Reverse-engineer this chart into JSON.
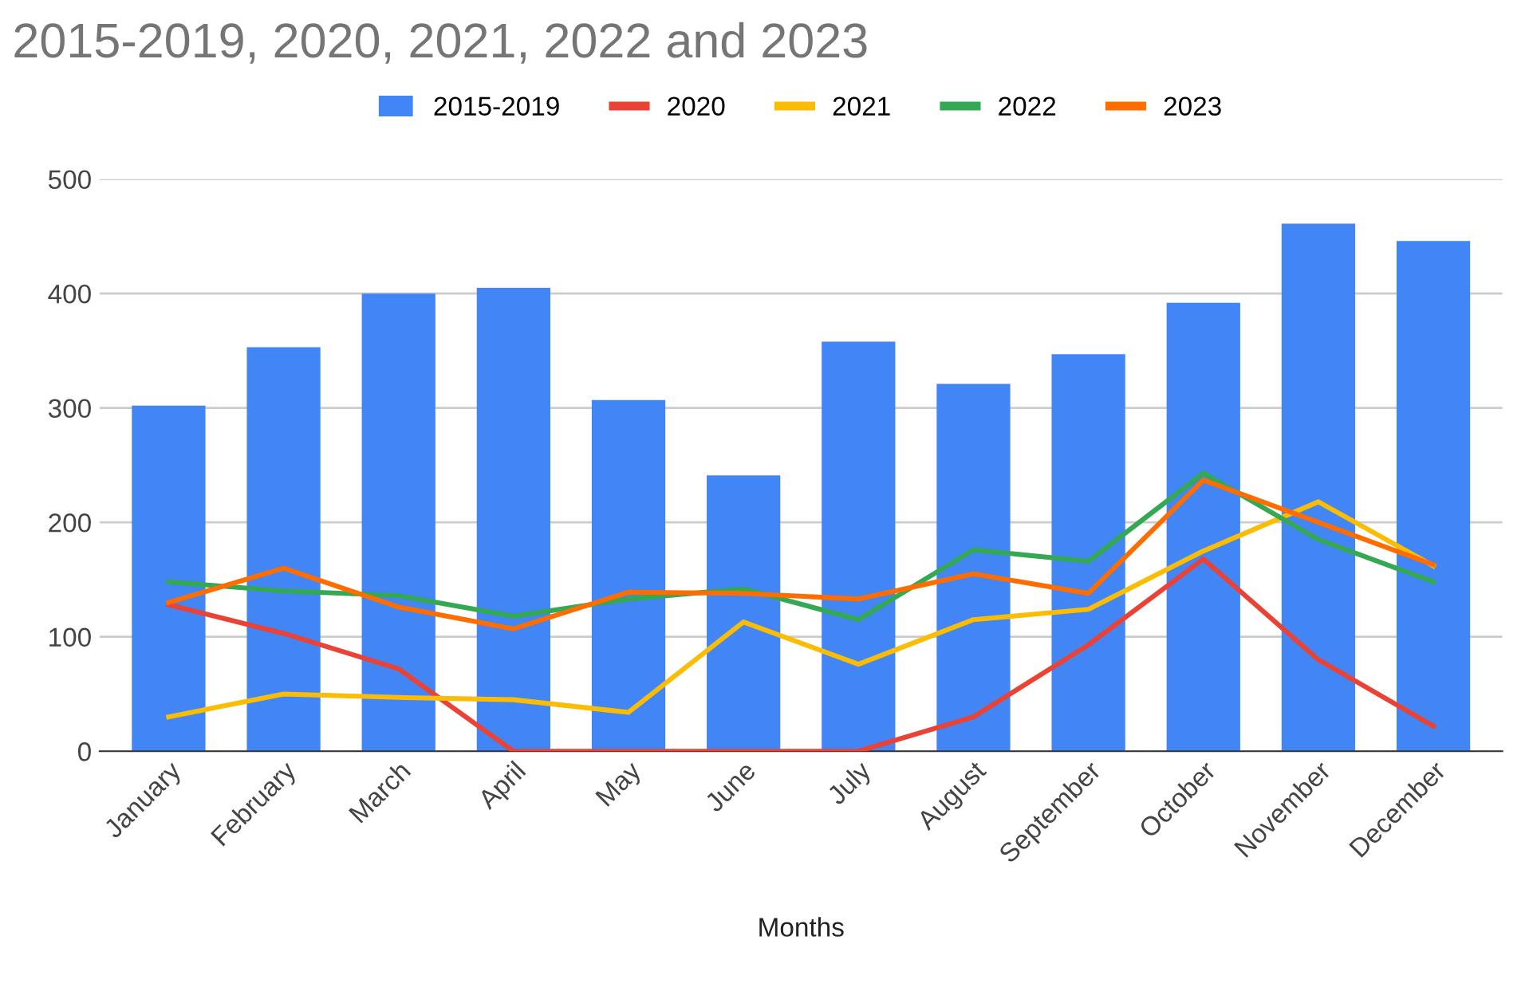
{
  "chart_data": {
    "type": "bar",
    "title": "2015-2019, 2020, 2021, 2022 and 2023",
    "xlabel": "Months",
    "categories": [
      "January",
      "February",
      "March",
      "April",
      "May",
      "June",
      "July",
      "August",
      "September",
      "October",
      "November",
      "December"
    ],
    "series": [
      {
        "name": "2015-2019",
        "color": "#4285f4",
        "values": [
          302,
          353,
          400,
          405,
          307,
          241,
          358,
          321,
          347,
          392,
          461,
          446
        ]
      },
      {
        "name": "2020",
        "type": "line",
        "color": "#ea4335",
        "values": [
          128,
          103,
          72,
          0,
          0,
          0,
          0,
          30,
          93,
          168,
          80,
          22
        ]
      },
      {
        "name": "2021",
        "type": "line",
        "color": "#fbbc04",
        "values": [
          30,
          50,
          47,
          45,
          34,
          113,
          76,
          115,
          124,
          175,
          218,
          162
        ]
      },
      {
        "name": "2022",
        "type": "line",
        "color": "#34a853",
        "values": [
          148,
          140,
          136,
          118,
          133,
          142,
          115,
          176,
          166,
          243,
          185,
          148
        ]
      },
      {
        "name": "2023",
        "type": "line",
        "color": "#ff6d01",
        "values": [
          130,
          160,
          126,
          107,
          139,
          138,
          133,
          155,
          138,
          237,
          200,
          163
        ]
      }
    ],
    "ylim": [
      0,
      500
    ],
    "yticks": [
      0,
      100,
      200,
      300,
      400,
      500
    ],
    "grid": "y",
    "legend": "top"
  }
}
